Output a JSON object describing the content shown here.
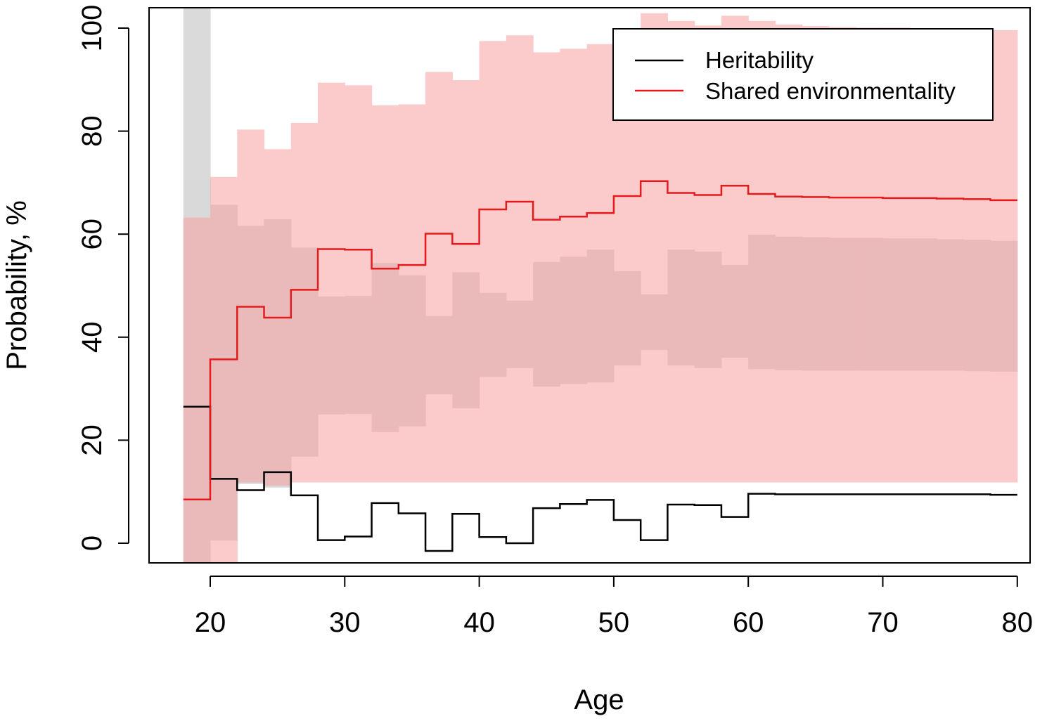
{
  "chart_data": {
    "type": "line",
    "title": "",
    "xlabel": "Age",
    "ylabel": "Probability, %",
    "xlim": [
      18,
      80
    ],
    "ylim": [
      -4,
      104
    ],
    "x_ticks": [
      20,
      30,
      40,
      50,
      60,
      70,
      80
    ],
    "y_ticks": [
      0,
      20,
      40,
      60,
      80,
      100
    ],
    "grid": false,
    "legend_position": "top-right",
    "step_edges": [
      18,
      20,
      22,
      24,
      26,
      28,
      30,
      32,
      34,
      36,
      38,
      40,
      42,
      44,
      46,
      48,
      50,
      52,
      54,
      56,
      58,
      60,
      62,
      64,
      66,
      68,
      70,
      72,
      74,
      76,
      78,
      80
    ],
    "series": [
      {
        "name": "Heritability",
        "color": "#000000",
        "band_color": "#bbbbbb",
        "values": [
          26.5,
          12.5,
          10.3,
          13.8,
          9.3,
          0.6,
          1.3,
          7.8,
          5.8,
          -1.5,
          5.7,
          1.2,
          0.0,
          6.8,
          7.6,
          8.4,
          4.5,
          0.6,
          7.5,
          7.4,
          5.1,
          9.6,
          9.5,
          9.5,
          9.5,
          9.5,
          9.5,
          9.5,
          9.5,
          9.5,
          9.4
        ],
        "lower": [
          -4,
          0.5,
          11.5,
          10.8,
          16.8,
          25.0,
          25.1,
          21.6,
          22.7,
          28.9,
          26.2,
          32.3,
          34.0,
          30.4,
          30.9,
          31.2,
          34.5,
          37.5,
          34.5,
          34.0,
          36.0,
          33.8,
          33.6,
          33.5,
          33.5,
          33.5,
          33.5,
          33.5,
          33.5,
          33.4,
          33.3
        ],
        "upper": [
          104,
          65.7,
          61.6,
          62.9,
          57.4,
          47.9,
          48.0,
          54.4,
          52.0,
          44.1,
          52.6,
          48.6,
          47.1,
          54.6,
          55.6,
          57.0,
          52.8,
          48.3,
          57.0,
          56.6,
          54.0,
          59.9,
          59.5,
          59.4,
          59.3,
          59.3,
          59.2,
          59.2,
          59.0,
          58.9,
          58.7
        ]
      },
      {
        "name": "Shared environmentality",
        "color": "#e41a1c",
        "band_color": "#f8a0a0",
        "values": [
          8.5,
          35.7,
          45.9,
          43.8,
          49.2,
          57.1,
          57.0,
          53.3,
          54.0,
          60.1,
          58.1,
          64.8,
          66.3,
          62.8,
          63.4,
          64.1,
          67.4,
          70.3,
          68.0,
          67.6,
          69.4,
          67.8,
          67.3,
          67.2,
          67.1,
          67.1,
          67.0,
          67.0,
          66.9,
          66.8,
          66.6
        ],
        "lower": [
          -4,
          -4,
          11.8,
          11.2,
          11.8,
          11.8,
          11.8,
          11.8,
          11.8,
          11.8,
          11.8,
          11.8,
          11.8,
          11.8,
          11.8,
          11.8,
          11.8,
          11.8,
          11.8,
          11.8,
          11.8,
          11.8,
          11.8,
          11.8,
          11.8,
          11.8,
          11.8,
          11.8,
          11.8,
          11.8,
          11.8
        ],
        "upper": [
          63.2,
          71.1,
          80.3,
          76.5,
          81.6,
          89.4,
          88.9,
          85.0,
          85.2,
          91.5,
          89.9,
          97.5,
          98.6,
          95.3,
          96.0,
          96.9,
          99.6,
          102.9,
          101.4,
          100.5,
          102.4,
          101.4,
          100.7,
          100.4,
          100.2,
          100.1,
          100.1,
          100.0,
          99.9,
          99.8,
          99.6
        ]
      }
    ]
  }
}
